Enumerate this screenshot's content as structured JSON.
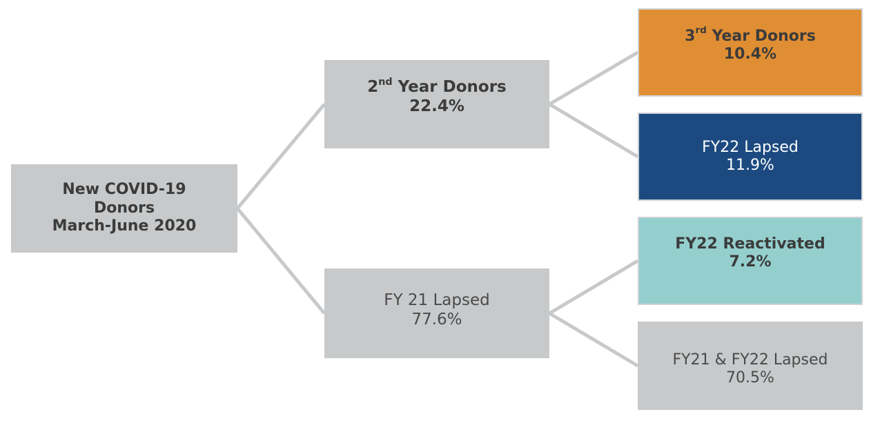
{
  "colors": {
    "connector": "#c7c9cb",
    "gray_box": "#c7c9cb",
    "orange_box": "#e08e33",
    "navy_box": "#1c4a80",
    "teal_box": "#94cfce",
    "dark_text": "#3b3b3b",
    "gray_text": "#4a4a4a",
    "white_text": "#ffffff"
  },
  "nodes": {
    "root": {
      "line1": "New COVID-19",
      "line2": "Donors",
      "line3": "March-June 2020",
      "fill": "gray_box",
      "text": "dark_text",
      "bold": true
    },
    "second_year": {
      "ordinal": "2",
      "suffix": "nd",
      "label": " Year Donors",
      "value": "22.4%",
      "fill": "gray_box",
      "text": "dark_text",
      "bold": true
    },
    "fy21_lapsed": {
      "label": "FY 21 Lapsed",
      "value": "77.6%",
      "fill": "gray_box",
      "text": "gray_text",
      "bold": false
    },
    "third_year": {
      "ordinal": "3",
      "suffix": "rd",
      "label": " Year Donors",
      "value": "10.4%",
      "fill": "orange_box",
      "text": "dark_text",
      "bold": true
    },
    "fy22_lapsed": {
      "label": "FY22 Lapsed",
      "value": "11.9%",
      "fill": "navy_box",
      "text": "white_text",
      "bold": false
    },
    "fy22_reactivated": {
      "label": "FY22 Reactivated",
      "value": "7.2%",
      "fill": "teal_box",
      "text": "dark_text",
      "bold": true
    },
    "fy21_fy22_lapsed": {
      "label": "FY21 & FY22 Lapsed",
      "value": "70.5%",
      "fill": "gray_box",
      "text": "gray_text",
      "bold": false
    }
  },
  "edges": [
    {
      "from": "root",
      "to": "second_year"
    },
    {
      "from": "root",
      "to": "fy21_lapsed"
    },
    {
      "from": "second_year",
      "to": "third_year"
    },
    {
      "from": "second_year",
      "to": "fy22_lapsed"
    },
    {
      "from": "fy21_lapsed",
      "to": "fy22_reactivated"
    },
    {
      "from": "fy21_lapsed",
      "to": "fy21_fy22_lapsed"
    }
  ]
}
